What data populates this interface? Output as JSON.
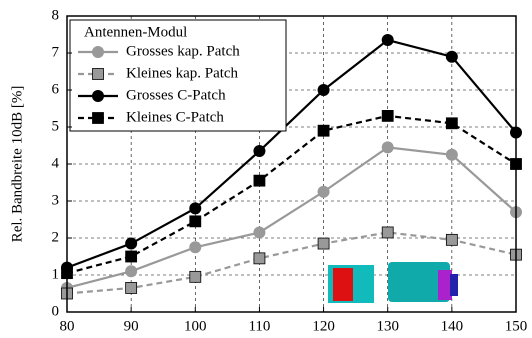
{
  "chart_data": {
    "type": "line",
    "y_label": "Rel. Bandbreite 10dB [%]",
    "legend_title": "Antennen-Modul",
    "x": [
      80,
      90,
      100,
      110,
      120,
      130,
      140,
      150
    ],
    "xlim": [
      80,
      150
    ],
    "xticks": [
      80,
      90,
      100,
      110,
      120,
      130,
      140,
      150
    ],
    "ylim": [
      0,
      8
    ],
    "yticks": [
      0,
      1,
      2,
      3,
      4,
      5,
      6,
      7,
      8
    ],
    "grid": true,
    "legend": "upper-left",
    "series": [
      {
        "name": "Grosses kap. Patch",
        "color": "#999999",
        "dashed": false,
        "marker": "circle",
        "values": [
          0.65,
          1.1,
          1.75,
          2.15,
          3.25,
          4.45,
          4.25,
          2.7
        ]
      },
      {
        "name": "Kleines kap. Patch",
        "color": "#999999",
        "dashed": true,
        "marker": "square",
        "values": [
          0.5,
          0.65,
          0.95,
          1.45,
          1.85,
          2.15,
          1.95,
          1.55
        ]
      },
      {
        "name": "Grosses C-Patch",
        "color": "#000000",
        "dashed": false,
        "marker": "circle",
        "values": [
          1.2,
          1.85,
          2.8,
          4.35,
          6.0,
          7.35,
          6.9,
          4.85
        ]
      },
      {
        "name": "Kleines C-Patch",
        "color": "#000000",
        "dashed": true,
        "marker": "square",
        "values": [
          1.05,
          1.5,
          2.45,
          3.55,
          4.9,
          5.3,
          5.1,
          4.0
        ]
      }
    ]
  }
}
